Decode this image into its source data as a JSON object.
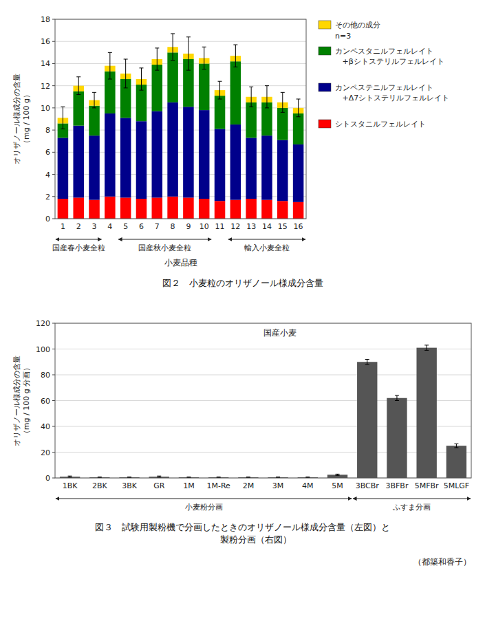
{
  "chart_data": [
    {
      "type": "bar",
      "stacked": true,
      "title": "図２　小麦粒のオリザノール様成分含量",
      "x_label": "小麦品種",
      "y_label": "オリザノール様成分の含量\n（mg / 100 g）",
      "categories": [
        "1",
        "2",
        "3",
        "4",
        "5",
        "6",
        "7",
        "8",
        "9",
        "10",
        "11",
        "12",
        "13",
        "14",
        "15",
        "16"
      ],
      "series": [
        {
          "name": "シトスタニルフェルレイト",
          "color": "#ff0000",
          "values": [
            1.8,
            1.9,
            1.7,
            2.0,
            1.9,
            1.8,
            1.9,
            2.0,
            1.9,
            1.8,
            1.6,
            1.7,
            1.8,
            1.7,
            1.6,
            1.5
          ]
        },
        {
          "name": "カンペステニルフェルレイト\n   +Δ7シトステリルフェルレイト",
          "color": "#00008b",
          "values": [
            5.5,
            6.5,
            5.8,
            7.5,
            7.2,
            7.0,
            7.8,
            8.5,
            8.2,
            8.0,
            6.5,
            6.8,
            5.5,
            5.8,
            5.5,
            5.2
          ]
        },
        {
          "name": "カンペスタニルフェルレイト\n   +βシトステリルフェルレイト",
          "color": "#008000",
          "values": [
            1.3,
            3.1,
            2.7,
            3.8,
            3.5,
            3.3,
            4.2,
            4.5,
            4.3,
            4.2,
            3.0,
            5.7,
            3.2,
            3.0,
            2.9,
            2.8
          ]
        },
        {
          "name": "その他の成分",
          "color": "#ffd700",
          "values": [
            0.5,
            0.5,
            0.5,
            0.5,
            0.5,
            0.5,
            0.5,
            0.5,
            0.5,
            0.5,
            0.5,
            0.5,
            0.5,
            0.5,
            0.5,
            0.5
          ]
        }
      ],
      "errors": [
        1.0,
        0.8,
        0.7,
        1.2,
        1.3,
        1.0,
        1.0,
        1.2,
        1.5,
        1.0,
        0.8,
        1.0,
        0.9,
        1.0,
        0.9,
        0.8
      ],
      "ylim": [
        0,
        18
      ],
      "yticks": [
        0,
        2,
        4,
        6,
        8,
        10,
        12,
        14,
        16,
        18
      ],
      "grid": true,
      "legend": "right",
      "annotations": [
        {
          "text": "国産春小麦全粒",
          "from": "1",
          "to": "3"
        },
        {
          "text": "国産秋小麦全粒",
          "from": "5",
          "to": "10"
        },
        {
          "text": "輸入小麦全粒",
          "from": "12",
          "to": "16"
        },
        {
          "text": "n=3"
        }
      ]
    },
    {
      "type": "bar",
      "title": "図３　試験用製粉機で分画したときのオリザノール様成分含量（左図）と\n　　　製粉分画（右図）",
      "y_label": "オリザノール様成分の含量\n（mg / 100 g 分画）",
      "categories": [
        "1BK",
        "2BK",
        "3BK",
        "GR",
        "1M",
        "1M-Re",
        "2M",
        "3M",
        "4M",
        "5M",
        "3BCBr",
        "3BFBr",
        "5MFBr",
        "5MLGF"
      ],
      "values": [
        1.0,
        0.5,
        0.5,
        1.0,
        0.5,
        0.5,
        0.5,
        0.5,
        0.5,
        2.5,
        90.0,
        62.0,
        101.0,
        25.0
      ],
      "errors": [
        0.5,
        0.3,
        0.3,
        0.5,
        0.3,
        0.3,
        0.3,
        0.3,
        0.3,
        0.5,
        2.0,
        2.0,
        2.0,
        1.5
      ],
      "color": "#555555",
      "ylim": [
        0,
        120
      ],
      "yticks": [
        0,
        20,
        40,
        60,
        80,
        100,
        120
      ],
      "grid": true,
      "annotations": [
        {
          "text": "国産小麦"
        },
        {
          "text": "小麦粉分画",
          "from": "1BK",
          "to": "5M"
        },
        {
          "text": "ふすま分画",
          "from": "3BCBr",
          "to": "5MLGF"
        },
        {
          "text": "（都築和香子）"
        }
      ]
    }
  ]
}
